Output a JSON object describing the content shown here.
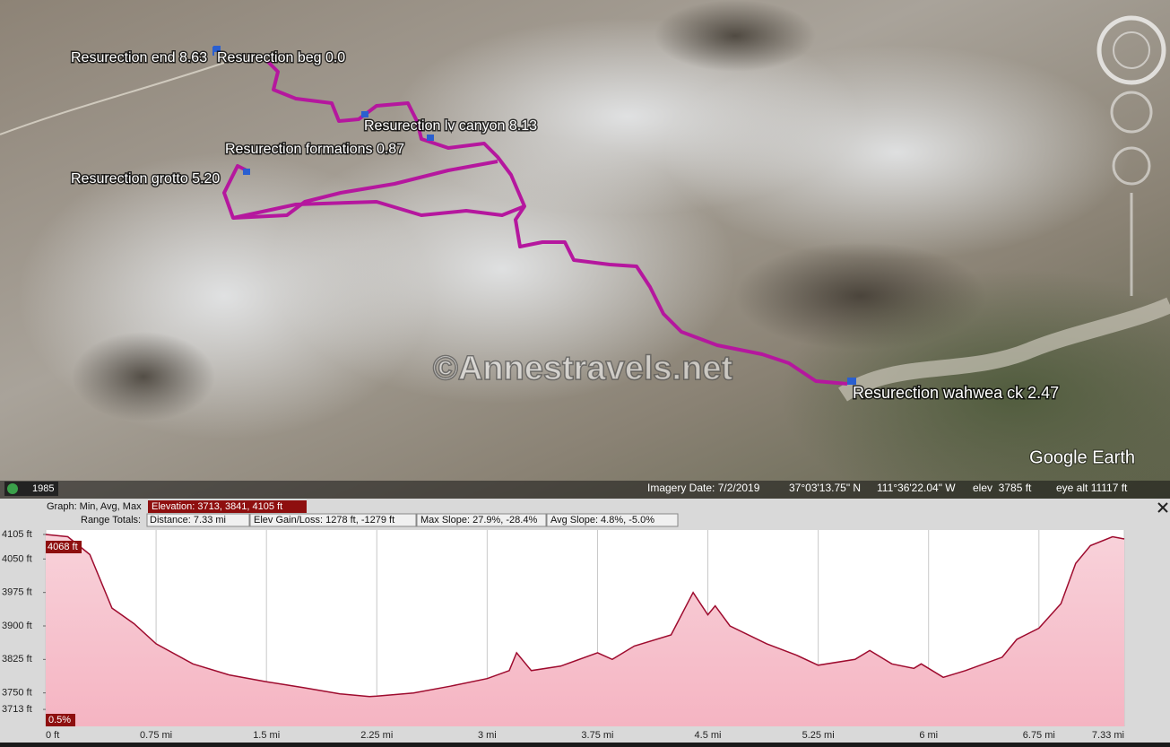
{
  "map": {
    "labels": [
      "Resurection end 8.63",
      "Resurection beg 0.0",
      "Resurection lv canyon 8.13",
      "Resurection formations 0.87",
      "Resurection grotto 5.20",
      "Resurection wahwea ck 2.47"
    ],
    "watermark": "©Annestravels.net",
    "logo": "Google Earth",
    "year": "1985"
  },
  "status_bar": {
    "imagery_date": "Imagery Date: 7/2/2019",
    "latitude": "37°03'13.75\" N",
    "longitude": "111°36'22.04\" W",
    "elev": "elev  3785 ft",
    "eye_alt": "eye alt 11117 ft"
  },
  "graph_header": {
    "graph_label": "Graph: Min, Avg, Max",
    "elevation": "Elevation: 3713, 3841, 4105 ft",
    "range_label": "Range Totals:",
    "distance": "Distance: 7.33 mi",
    "elev_gain_loss": "Elev Gain/Loss: 1278 ft, -1279 ft",
    "max_slope": "Max Slope: 27.9%, -28.4%",
    "avg_slope": "Avg Slope: 4.8%, -5.0%"
  },
  "elevation_profile": {
    "type": "area",
    "x": [
      0,
      0.15,
      0.3,
      0.45,
      0.6,
      0.75,
      1.0,
      1.25,
      1.5,
      1.75,
      2.0,
      2.2,
      2.25,
      2.5,
      2.75,
      3.0,
      3.15,
      3.2,
      3.3,
      3.5,
      3.75,
      3.85,
      4.0,
      4.25,
      4.4,
      4.5,
      4.55,
      4.65,
      4.9,
      5.1,
      5.25,
      5.5,
      5.6,
      5.75,
      5.9,
      5.95,
      6.1,
      6.25,
      6.5,
      6.6,
      6.75,
      6.9,
      7.0,
      7.1,
      7.25,
      7.33
    ],
    "values": [
      4105,
      4100,
      4060,
      3940,
      3905,
      3860,
      3815,
      3790,
      3775,
      3762,
      3748,
      3742,
      3743,
      3750,
      3765,
      3782,
      3800,
      3840,
      3800,
      3810,
      3840,
      3825,
      3855,
      3880,
      3975,
      3925,
      3945,
      3900,
      3860,
      3835,
      3812,
      3825,
      3845,
      3815,
      3805,
      3815,
      3785,
      3800,
      3830,
      3870,
      3895,
      3950,
      4040,
      4080,
      4100,
      4095
    ],
    "xlim": [
      0,
      7.33
    ],
    "xticks": [
      {
        "value": 0,
        "label": "0 ft"
      },
      {
        "value": 0.75,
        "label": "0.75 mi"
      },
      {
        "value": 1.5,
        "label": "1.5 mi"
      },
      {
        "value": 2.25,
        "label": "2.25 mi"
      },
      {
        "value": 3,
        "label": "3 mi"
      },
      {
        "value": 3.75,
        "label": "3.75 mi"
      },
      {
        "value": 4.5,
        "label": "4.5 mi"
      },
      {
        "value": 5.25,
        "label": "5.25 mi"
      },
      {
        "value": 6,
        "label": "6 mi"
      },
      {
        "value": 6.75,
        "label": "6.75 mi"
      },
      {
        "value": 7.33,
        "label": "7.33 mi"
      }
    ],
    "ylim": [
      3675,
      4115
    ],
    "yticks": [
      {
        "value": 3713,
        "label": "3713 ft"
      },
      {
        "value": 3750,
        "label": "3750 ft"
      },
      {
        "value": 3825,
        "label": "3825 ft"
      },
      {
        "value": 3900,
        "label": "3900 ft"
      },
      {
        "value": 3975,
        "label": "3975 ft"
      },
      {
        "value": 4050,
        "label": "4050 ft"
      },
      {
        "value": 4105,
        "label": "4105 ft"
      }
    ],
    "color": "#9e0b2e",
    "cursor_elevation": "4068 ft",
    "cursor_slope": "0.5%"
  }
}
